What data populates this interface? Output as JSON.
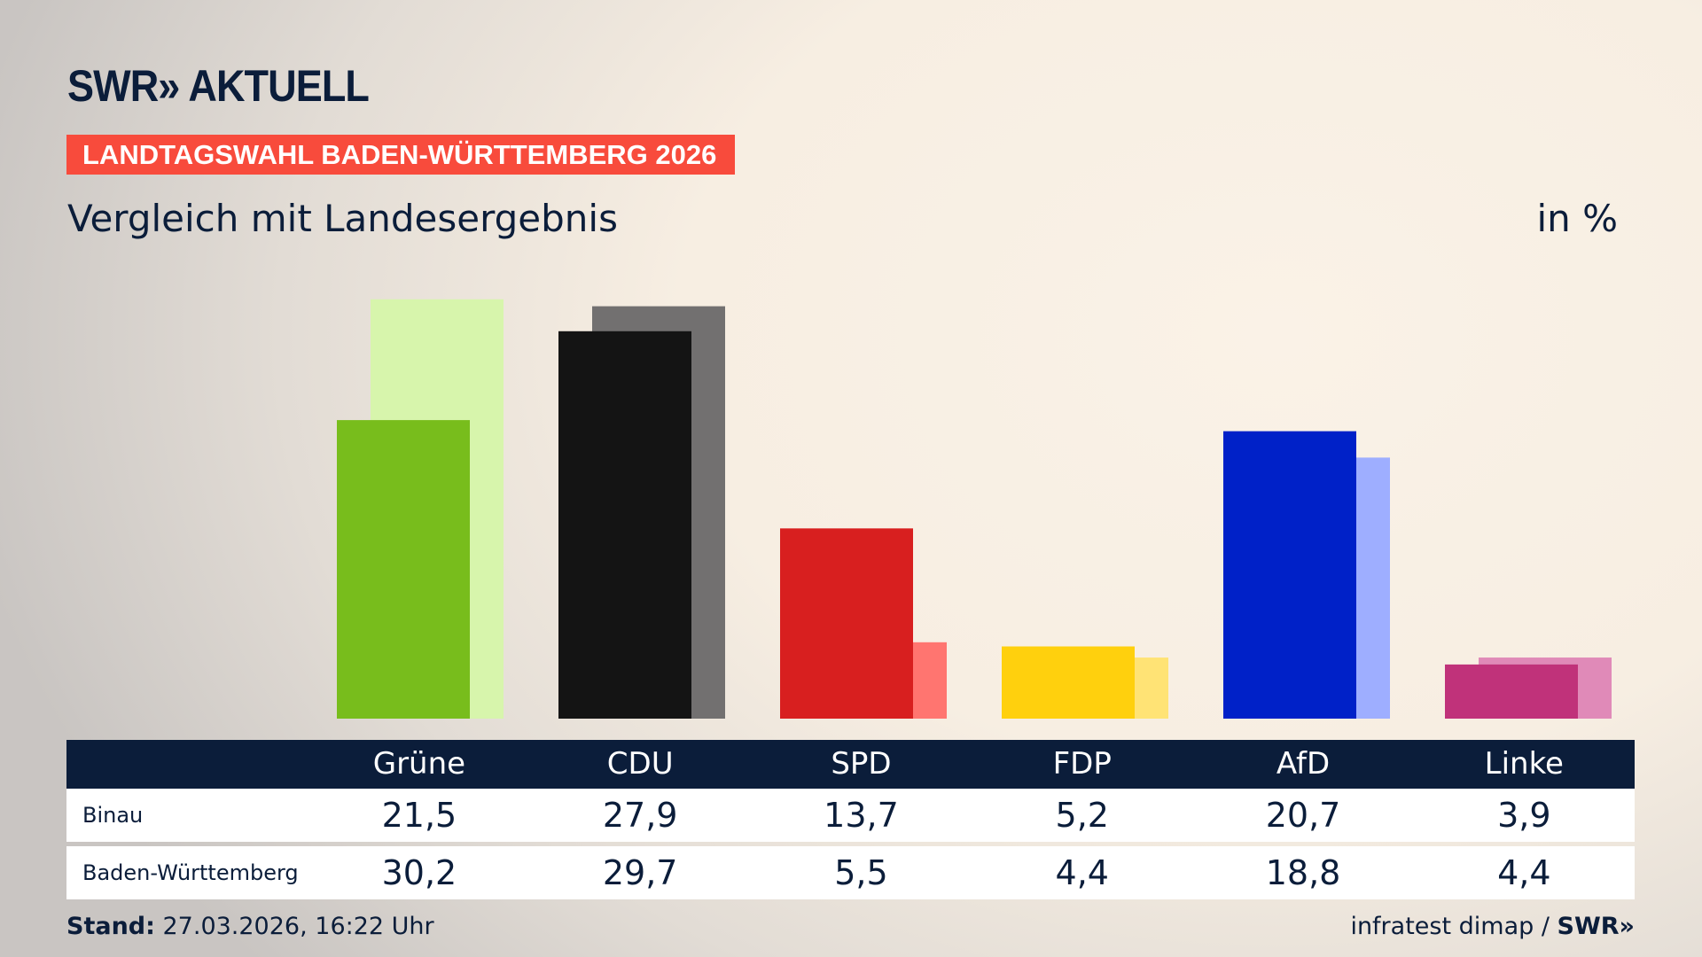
{
  "header": {
    "logo": "SWR» AKTUELL",
    "banner": "LANDTAGSWAHL BADEN-WÜRTTEMBERG 2026",
    "subtitle": "Vergleich mit Landesergebnis",
    "unit": "in %"
  },
  "colors": {
    "navy": "#0b1d3a",
    "banner": "#f84b3c"
  },
  "chart_data": {
    "type": "bar",
    "categories": [
      "Grüne",
      "CDU",
      "SPD",
      "FDP",
      "AfD",
      "Linke"
    ],
    "series": [
      {
        "name": "Binau",
        "values": [
          21.5,
          27.9,
          13.7,
          5.2,
          20.7,
          3.9
        ],
        "colors": [
          "#78bd1c",
          "#141414",
          "#d81f1f",
          "#ffd00d",
          "#0021c8",
          "#c0327a"
        ]
      },
      {
        "name": "Baden-Württemberg",
        "values": [
          30.2,
          29.7,
          5.5,
          4.4,
          18.8,
          4.4
        ],
        "colors": [
          "#d7f5ac",
          "#727070",
          "#ff7570",
          "#ffe375",
          "#9eaeff",
          "#e08ab8"
        ]
      }
    ],
    "ylim": [
      0,
      30.2
    ]
  },
  "table": {
    "headers": [
      "Grüne",
      "CDU",
      "SPD",
      "FDP",
      "AfD",
      "Linke"
    ],
    "rows": [
      {
        "label": "Binau",
        "values": [
          "21,5",
          "27,9",
          "13,7",
          "5,2",
          "20,7",
          "3,9"
        ]
      },
      {
        "label": "Baden-Württemberg",
        "values": [
          "30,2",
          "29,7",
          "5,5",
          "4,4",
          "18,8",
          "4,4"
        ]
      }
    ]
  },
  "footer": {
    "stand_label": "Stand:",
    "stand_value": " 27.03.2026, 16:22 Uhr",
    "source": "infratest dimap / ",
    "source_logo": "SWR»"
  }
}
